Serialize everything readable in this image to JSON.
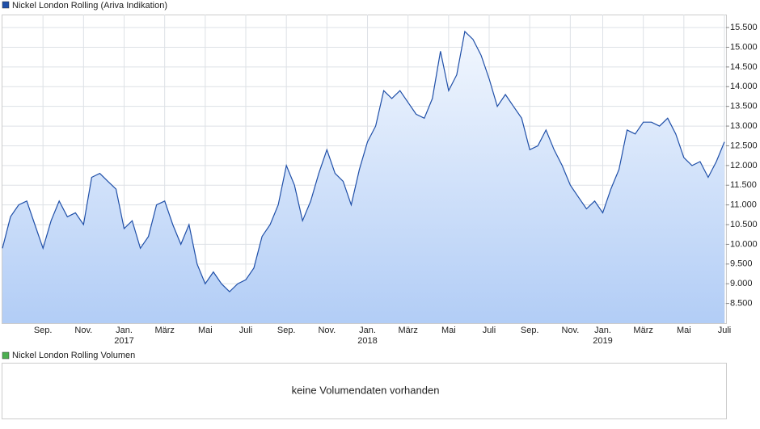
{
  "chart_data": {
    "type": "area",
    "series": [
      {
        "name": "Nickel London Rolling (Ariva Indikation)",
        "color": "#1f4fa8",
        "values": [
          9900,
          10700,
          11000,
          11100,
          10500,
          9900,
          10600,
          11100,
          10700,
          10800,
          10500,
          11700,
          11800,
          11600,
          11400,
          10400,
          10600,
          9900,
          10200,
          11000,
          11100,
          10500,
          10000,
          10500,
          9500,
          9000,
          9300,
          9000,
          8800,
          9000,
          9100,
          9400,
          10200,
          10500,
          11000,
          12000,
          11500,
          10600,
          11100,
          11800,
          12400,
          11800,
          11600,
          11000,
          11900,
          12600,
          13000,
          13900,
          13700,
          13900,
          13600,
          13300,
          13200,
          13700,
          14900,
          13900,
          14300,
          15400,
          15200,
          14800,
          14200,
          13500,
          13800,
          13500,
          13200,
          12400,
          12500,
          12900,
          12400,
          12000,
          11500,
          11200,
          10900,
          11100,
          10800,
          11400,
          11900,
          12900,
          12800,
          13100,
          13100,
          13000,
          13200,
          12800,
          12200,
          12000,
          12100,
          11700,
          12100,
          12600
        ]
      }
    ],
    "categories": [
      null,
      null,
      null,
      null,
      null,
      "Sep.",
      null,
      null,
      null,
      null,
      "Nov.",
      null,
      null,
      null,
      null,
      "Jan.",
      null,
      null,
      null,
      null,
      "März",
      null,
      null,
      null,
      null,
      "Mai",
      null,
      null,
      null,
      null,
      "Juli",
      null,
      null,
      null,
      null,
      "Sep.",
      null,
      null,
      null,
      null,
      "Nov.",
      null,
      null,
      null,
      null,
      "Jan.",
      null,
      null,
      null,
      null,
      "März",
      null,
      null,
      null,
      null,
      "Mai",
      null,
      null,
      null,
      null,
      "Juli",
      null,
      null,
      null,
      null,
      "Sep.",
      null,
      null,
      null,
      null,
      "Nov.",
      null,
      null,
      null,
      "Jan.",
      null,
      null,
      null,
      null,
      "März",
      null,
      null,
      null,
      null,
      "Mai",
      null,
      null,
      null,
      null,
      "Juli"
    ],
    "years": [
      null,
      null,
      null,
      null,
      null,
      null,
      null,
      null,
      null,
      null,
      null,
      null,
      null,
      null,
      null,
      "2017",
      null,
      null,
      null,
      null,
      null,
      null,
      null,
      null,
      null,
      null,
      null,
      null,
      null,
      null,
      null,
      null,
      null,
      null,
      null,
      null,
      null,
      null,
      null,
      null,
      null,
      null,
      null,
      null,
      null,
      "2018",
      null,
      null,
      null,
      null,
      null,
      null,
      null,
      null,
      null,
      null,
      null,
      null,
      null,
      null,
      null,
      null,
      null,
      null,
      null,
      null,
      null,
      null,
      null,
      null,
      null,
      null,
      null,
      null,
      "2019",
      null,
      null,
      null,
      null,
      null,
      null,
      null,
      null,
      null,
      null,
      null,
      null,
      null,
      null,
      null
    ],
    "ylim": [
      8000,
      15830
    ],
    "yticks": [
      {
        "value": 8500,
        "label": "8.500"
      },
      {
        "value": 9000,
        "label": "9.000"
      },
      {
        "value": 9500,
        "label": "9.500"
      },
      {
        "value": 10000,
        "label": "10.000"
      },
      {
        "value": 10500,
        "label": "10.500"
      },
      {
        "value": 11000,
        "label": "11.000"
      },
      {
        "value": 11500,
        "label": "11.500"
      },
      {
        "value": 12000,
        "label": "12.000"
      },
      {
        "value": 12500,
        "label": "12.500"
      },
      {
        "value": 13000,
        "label": "13.000"
      },
      {
        "value": 13500,
        "label": "13.500"
      },
      {
        "value": 14000,
        "label": "14.000"
      },
      {
        "value": 14500,
        "label": "14.500"
      },
      {
        "value": 15000,
        "label": "15.000"
      },
      {
        "value": 15500,
        "label": "15.500"
      }
    ],
    "grid": true
  },
  "volume_panel": {
    "title": "Nickel London Rolling Volumen",
    "color": "#4caf50",
    "message": "keine Volumendaten vorhanden"
  }
}
